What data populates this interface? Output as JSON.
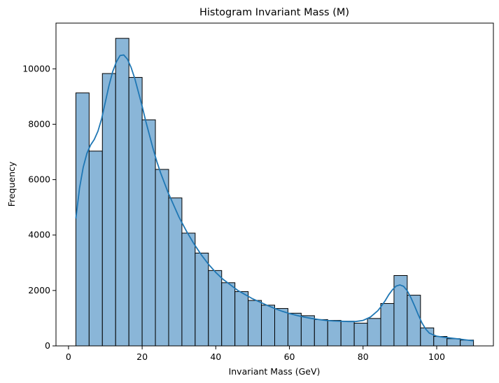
{
  "chart_data": {
    "type": "bar",
    "title": "Histogram Invariant Mass (M)",
    "xlabel": "Invariant Mass (GeV)",
    "ylabel": "Frequency",
    "xlim": [
      -3.4,
      115.4
    ],
    "ylim": [
      0,
      11650
    ],
    "x_ticks": [
      0,
      20,
      40,
      60,
      80,
      100
    ],
    "y_ticks": [
      0,
      2000,
      4000,
      6000,
      8000,
      10000
    ],
    "grid": false,
    "legend": "none",
    "bar_color": "#8ab6d8",
    "bar_edge_color": "#000000",
    "kde_color": "#1f77b4",
    "bins": [
      {
        "start": 2.0,
        "end": 5.6,
        "value": 9130
      },
      {
        "start": 5.6,
        "end": 9.2,
        "value": 7030
      },
      {
        "start": 9.2,
        "end": 12.8,
        "value": 9830
      },
      {
        "start": 12.8,
        "end": 16.4,
        "value": 11100
      },
      {
        "start": 16.4,
        "end": 20.0,
        "value": 9690
      },
      {
        "start": 20.0,
        "end": 23.6,
        "value": 8160
      },
      {
        "start": 23.6,
        "end": 27.2,
        "value": 6370
      },
      {
        "start": 27.2,
        "end": 30.8,
        "value": 5340
      },
      {
        "start": 30.8,
        "end": 34.4,
        "value": 4070
      },
      {
        "start": 34.4,
        "end": 38.0,
        "value": 3350
      },
      {
        "start": 38.0,
        "end": 41.6,
        "value": 2720
      },
      {
        "start": 41.6,
        "end": 45.2,
        "value": 2280
      },
      {
        "start": 45.2,
        "end": 48.8,
        "value": 1960
      },
      {
        "start": 48.8,
        "end": 52.4,
        "value": 1640
      },
      {
        "start": 52.4,
        "end": 56.0,
        "value": 1470
      },
      {
        "start": 56.0,
        "end": 59.6,
        "value": 1350
      },
      {
        "start": 59.6,
        "end": 63.2,
        "value": 1180
      },
      {
        "start": 63.2,
        "end": 66.8,
        "value": 1090
      },
      {
        "start": 66.8,
        "end": 70.4,
        "value": 950
      },
      {
        "start": 70.4,
        "end": 74.0,
        "value": 920
      },
      {
        "start": 74.0,
        "end": 77.6,
        "value": 890
      },
      {
        "start": 77.6,
        "end": 81.2,
        "value": 820
      },
      {
        "start": 81.2,
        "end": 84.8,
        "value": 990
      },
      {
        "start": 84.8,
        "end": 88.4,
        "value": 1530
      },
      {
        "start": 88.4,
        "end": 92.0,
        "value": 2540
      },
      {
        "start": 92.0,
        "end": 95.6,
        "value": 1830
      },
      {
        "start": 95.6,
        "end": 99.2,
        "value": 650
      },
      {
        "start": 99.2,
        "end": 102.8,
        "value": 340
      },
      {
        "start": 102.8,
        "end": 106.4,
        "value": 260
      },
      {
        "start": 106.4,
        "end": 110.0,
        "value": 210
      }
    ],
    "kde": {
      "x": [
        2,
        3,
        4,
        5,
        6,
        7,
        8,
        9,
        10,
        11,
        12,
        13,
        14,
        15,
        16,
        17,
        18,
        19,
        20,
        21,
        22,
        23,
        24,
        25,
        26,
        27,
        28,
        29,
        30,
        32,
        34,
        36,
        38,
        40,
        42,
        44,
        46,
        48,
        50,
        52,
        54,
        56,
        58,
        60,
        62,
        64,
        66,
        68,
        70,
        72,
        74,
        76,
        78,
        80,
        82,
        84,
        85,
        86,
        87,
        88,
        89,
        90,
        91,
        92,
        93,
        94,
        95,
        96,
        97,
        98,
        100,
        102,
        104,
        106,
        108,
        110
      ],
      "y": [
        4600,
        5700,
        6450,
        6950,
        7250,
        7450,
        7750,
        8200,
        8800,
        9400,
        9900,
        10250,
        10480,
        10500,
        10350,
        10050,
        9650,
        9150,
        8650,
        8100,
        7600,
        7100,
        6650,
        6250,
        5900,
        5550,
        5250,
        4950,
        4650,
        4150,
        3700,
        3300,
        2950,
        2650,
        2400,
        2200,
        2000,
        1850,
        1700,
        1580,
        1460,
        1350,
        1250,
        1170,
        1100,
        1040,
        990,
        950,
        920,
        900,
        890,
        880,
        880,
        920,
        1040,
        1270,
        1440,
        1630,
        1850,
        2030,
        2160,
        2200,
        2150,
        1990,
        1740,
        1440,
        1120,
        830,
        610,
        460,
        350,
        310,
        280,
        250,
        215,
        185
      ]
    }
  }
}
